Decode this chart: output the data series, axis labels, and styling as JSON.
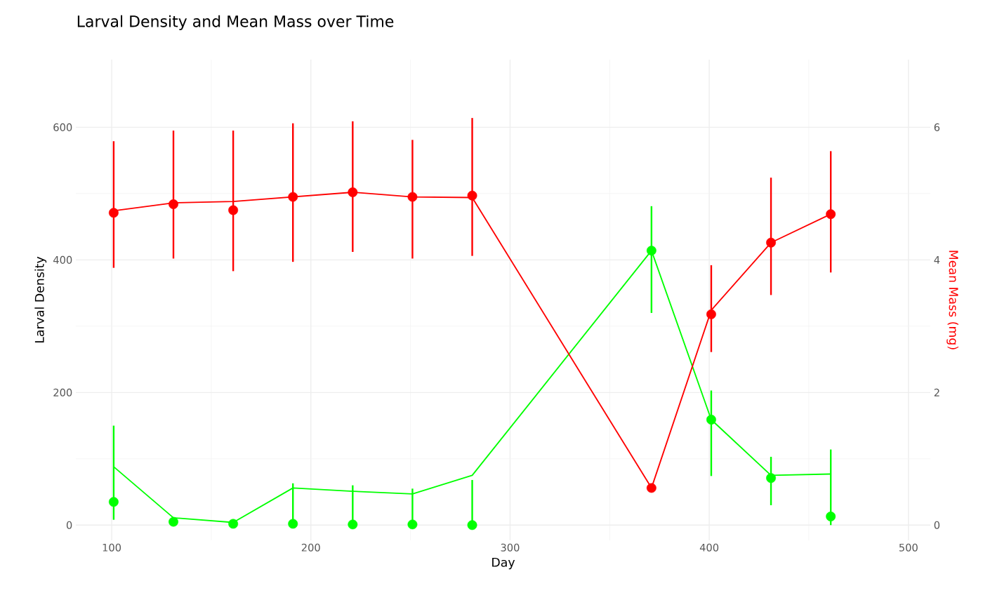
{
  "chart_data": {
    "type": "line",
    "title": "Larval Density and Mean Mass over Time",
    "xlabel": "Day",
    "ylabel": "Larval Density",
    "y2label": "Mean Mass (mg)",
    "x": [
      101,
      131,
      161,
      191,
      221,
      251,
      281,
      371,
      401,
      431,
      461
    ],
    "xlim": [
      82,
      511
    ],
    "xticks": [
      100,
      200,
      300,
      400,
      500
    ],
    "ylim": [
      -23,
      702
    ],
    "yticks": [
      0,
      200,
      400,
      600
    ],
    "y2lim": [
      -0.23,
      7.02
    ],
    "y2ticks": [
      0,
      2,
      4,
      6
    ],
    "grid": true,
    "marker": "none",
    "line_style": "solid",
    "series": [
      {
        "color": "#00ff00",
        "values": [
          88,
          11,
          4,
          56,
          51,
          47,
          75,
          414,
          159,
          75,
          77
        ]
      },
      {
        "type": "scatter",
        "color": "#00ff00",
        "marker": "circle",
        "values": [
          35,
          5,
          2,
          2,
          1,
          1,
          0,
          414,
          159,
          71,
          13
        ],
        "errors": [
          [
            8,
            150
          ],
          null,
          null,
          [
            0,
            63
          ],
          [
            0,
            60
          ],
          [
            0,
            55
          ],
          [
            0,
            68
          ],
          [
            320,
            481
          ],
          [
            74,
            203
          ],
          [
            30,
            103
          ],
          [
            0,
            114
          ]
        ]
      },
      {
        "axis": "y2",
        "color": "#ff0000",
        "values": [
          4.74,
          4.86,
          4.88,
          4.95,
          5.02,
          4.95,
          4.94,
          0.56,
          3.24,
          4.26,
          4.69
        ]
      },
      {
        "type": "scatter",
        "axis": "y2",
        "color": "#ff0000",
        "marker": "circle",
        "values": [
          4.71,
          4.84,
          4.75,
          4.95,
          5.02,
          4.95,
          4.97,
          0.56,
          3.18,
          4.26,
          4.69
        ],
        "errors": [
          [
            3.88,
            5.79
          ],
          [
            4.02,
            5.95
          ],
          [
            3.83,
            5.95
          ],
          [
            3.97,
            6.06
          ],
          [
            4.12,
            6.09
          ],
          [
            4.02,
            5.81
          ],
          [
            4.06,
            6.14
          ],
          null,
          [
            2.61,
            3.92
          ],
          [
            3.47,
            5.24
          ],
          [
            3.81,
            5.64
          ]
        ]
      }
    ]
  }
}
